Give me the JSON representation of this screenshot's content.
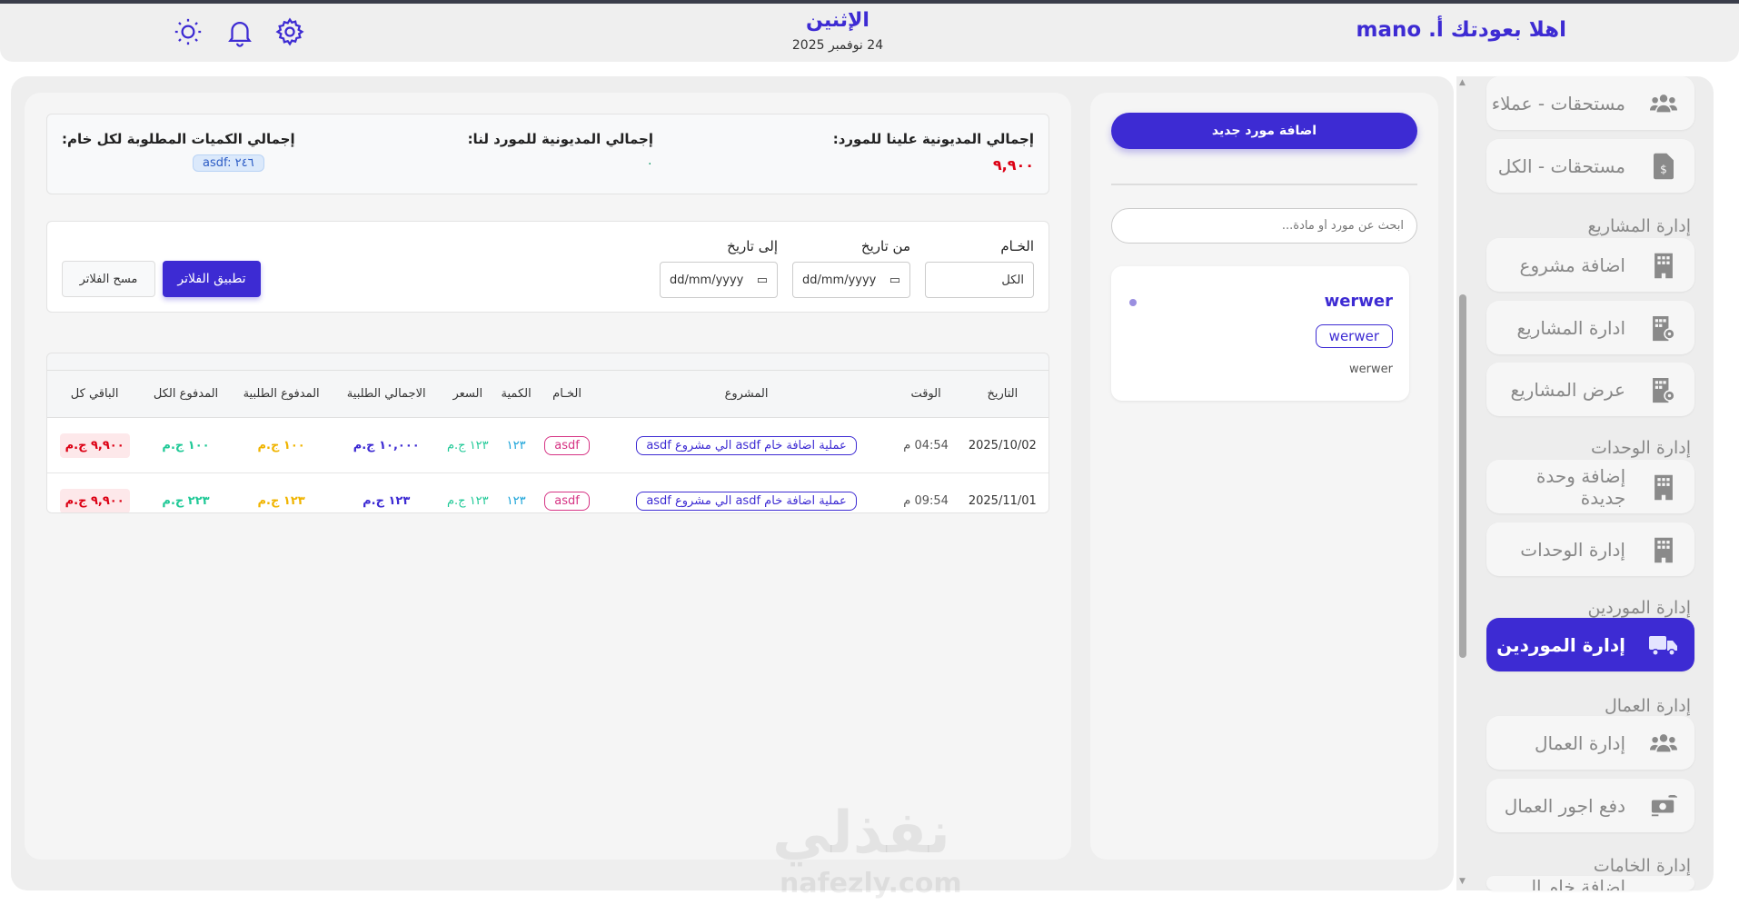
{
  "header": {
    "welcome": "اهلا بعودتك أ. mano",
    "day": "الإثنين",
    "date": "24 نوفمبر 2025",
    "icons": [
      "sun-icon",
      "bell-icon",
      "gear-icon"
    ]
  },
  "summary": {
    "debt_to_supplier_label": "إجمالي المديونية علينا للمورد:",
    "debt_to_supplier_value": "٩,٩٠٠",
    "supplier_debt_label": "إجمالي المديونية للمورد لنا:",
    "supplier_debt_value": "٠",
    "quantities_label": "إجمالي الكميات المطلوبة لكل خام:",
    "quantities_badge": "asdf:  ٢٤٦"
  },
  "filters": {
    "material_label": "الخـام",
    "material_value": "الكل",
    "from_label": "من تاريخ",
    "from_placeholder": "dd/mm/yyyy",
    "to_label": "إلى تاريخ",
    "to_placeholder": "dd/mm/yyyy",
    "apply": "تطبيق الفلاتر",
    "clear": "مسح الفلاتر"
  },
  "table": {
    "headers": [
      "التاريخ",
      "الوقت",
      "المشروع",
      "الخـام",
      "الكمية",
      "السعر",
      "الاجمالي الطلبية",
      "المدفوع الطلبية",
      "المدفوع الكل",
      "الباقي كل"
    ],
    "rows": [
      [
        "2025/10/02",
        "04:54 م",
        "عملية اضافة خام asdf الي مشروع asdf",
        "asdf",
        "١٢٣",
        "١٢٣ ج.م",
        "١٠,٠٠٠ ج.م",
        "١٠٠ ج.م",
        "١٠٠ ج.م",
        "٩,٩٠٠ ج.م"
      ],
      [
        "2025/11/01",
        "09:54 م",
        "عملية اضافة خام asdf الي مشروع asdf",
        "asdf",
        "١٢٣",
        "١٢٣ ج.م",
        "١٢٣ ج.م",
        "١٢٣ ج.م",
        "٢٢٣ ج.م",
        "٩,٩٠٠ ج.م"
      ]
    ]
  },
  "suppliers": {
    "add_button": "اضافة مورد جديد",
    "search_placeholder": "ابحث عن مورد أو مادة...",
    "card": {
      "name": "werwer",
      "tag": "werwer",
      "note": "werwer"
    }
  },
  "sidebar": {
    "items": [
      {
        "label": "مستحقات - عملاء",
        "icon": "users-icon"
      },
      {
        "label": "مستحقات - الكل",
        "icon": "invoice-dollar-icon"
      },
      {
        "section": "إدارة المشاريع"
      },
      {
        "label": "اضافة مشروع",
        "icon": "building-icon"
      },
      {
        "label": "ادارة المشاريع",
        "icon": "building-gear-icon"
      },
      {
        "label": "عرض المشاريع",
        "icon": "building-gear-icon"
      },
      {
        "section": "إدارة الوحدات"
      },
      {
        "label": "إضافة وحدة جديدة",
        "icon": "building-icon"
      },
      {
        "label": "إدارة الوحدات",
        "icon": "building-icon"
      },
      {
        "section": "إدارة الموردين"
      },
      {
        "label": "إدارة الموردين",
        "icon": "truck-icon",
        "active": true
      },
      {
        "section": "إدارة العمال"
      },
      {
        "label": "إدارة العمال",
        "icon": "users-icon"
      },
      {
        "label": "دفع اجور العمال",
        "icon": "money-exchange-icon"
      },
      {
        "section": "إدارة الخامات"
      },
      {
        "label": "اضافة خام ال",
        "icon": ""
      }
    ]
  },
  "watermark": {
    "arabic": "نفذلي",
    "latin": "nafezly.com"
  },
  "colors": {
    "accent": "#3d2bd3",
    "danger": "#dc0014",
    "teal": "#20c997",
    "amber": "#f0b400",
    "cyan": "#17a2d8"
  }
}
